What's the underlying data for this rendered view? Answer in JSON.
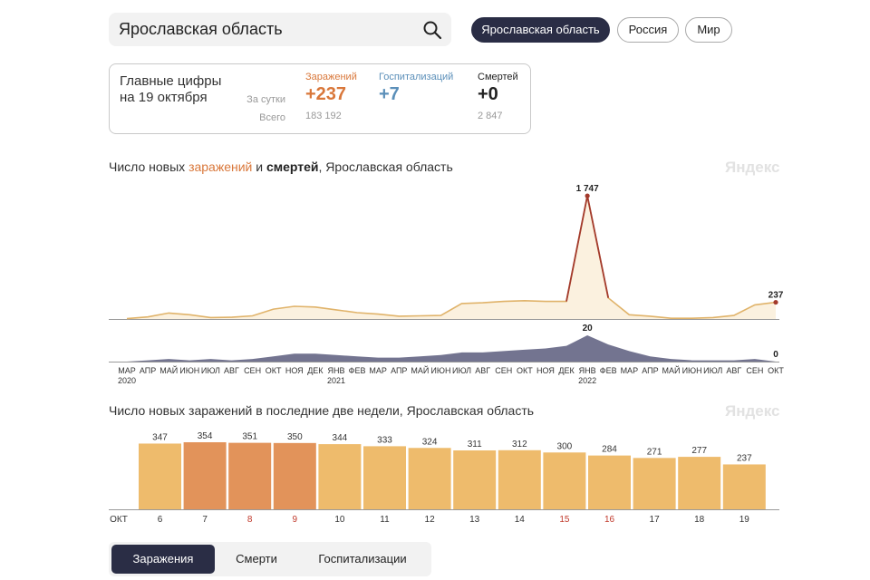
{
  "search": {
    "value": "Ярославская область"
  },
  "region_tabs": [
    {
      "label": "Ярославская область",
      "active": true
    },
    {
      "label": "Россия",
      "active": false
    },
    {
      "label": "Мир",
      "active": false
    }
  ],
  "stats": {
    "title_line1": "Главные цифры",
    "title_line2": "на 19 октября",
    "row_day": "За сутки",
    "row_total": "Всего",
    "infections": {
      "label": "Заражений",
      "day": "+237",
      "total": "183 192",
      "color": "#d9773a"
    },
    "hospitalizations": {
      "label": "Госпитализаций",
      "day": "+7",
      "total": "",
      "color": "#5b8fb9"
    },
    "deaths": {
      "label": "Смертей",
      "day": "+0",
      "total": "2 847",
      "color": "#222222"
    }
  },
  "chart1": {
    "title_part1": "Число новых ",
    "title_part2": "заражений",
    "title_part3": " и ",
    "title_part4": "смертей",
    "title_part5": ", Ярославская область",
    "watermark": "Яндекс"
  },
  "chart2": {
    "title": "Число новых заражений в последние две недели, Ярославская область",
    "watermark": "Яндекс"
  },
  "chart_data": [
    {
      "type": "area",
      "series": [
        {
          "name": "заражений",
          "color": "#e0b36a",
          "x": [
            "2020-03",
            "2020-04",
            "2020-05",
            "2020-06",
            "2020-07",
            "2020-08",
            "2020-09",
            "2020-10",
            "2020-11",
            "2020-12",
            "2021-01",
            "2021-02",
            "2021-03",
            "2021-04",
            "2021-05",
            "2021-06",
            "2021-07",
            "2021-08",
            "2021-09",
            "2021-10",
            "2021-11",
            "2021-12",
            "2022-01",
            "2022-02",
            "2022-03",
            "2022-04",
            "2022-05",
            "2022-06",
            "2022-07",
            "2022-08",
            "2022-09",
            "2022-10"
          ],
          "values": [
            5,
            30,
            85,
            60,
            20,
            25,
            45,
            140,
            180,
            170,
            130,
            90,
            70,
            40,
            45,
            50,
            220,
            230,
            250,
            260,
            250,
            250,
            1747,
            300,
            60,
            40,
            10,
            10,
            20,
            50,
            200,
            237
          ]
        },
        {
          "name": "смертей",
          "color": "#5a5c7c",
          "x": [
            "2020-03",
            "2020-04",
            "2020-05",
            "2020-06",
            "2020-07",
            "2020-08",
            "2020-09",
            "2020-10",
            "2020-11",
            "2020-12",
            "2021-01",
            "2021-02",
            "2021-03",
            "2021-04",
            "2021-05",
            "2021-06",
            "2021-07",
            "2021-08",
            "2021-09",
            "2021-10",
            "2021-11",
            "2021-12",
            "2022-01",
            "2022-02",
            "2022-03",
            "2022-04",
            "2022-05",
            "2022-06",
            "2022-07",
            "2022-08",
            "2022-09",
            "2022-10"
          ],
          "values": [
            0,
            1,
            2,
            1,
            2,
            1,
            2,
            4,
            6,
            6,
            5,
            4,
            3,
            3,
            4,
            5,
            7,
            7,
            8,
            9,
            10,
            12,
            20,
            13,
            8,
            4,
            2,
            1,
            1,
            1,
            2,
            0
          ]
        }
      ],
      "annotations": [
        {
          "label": "1 747",
          "series": "заражений",
          "x": "2022-01"
        },
        {
          "label": "237",
          "series": "заражений",
          "x": "2022-10"
        },
        {
          "label": "20",
          "series": "смертей",
          "x": "2022-01"
        },
        {
          "label": "0",
          "series": "смертей",
          "x": "2022-10"
        }
      ],
      "month_ticks": [
        "МАР",
        "АПР",
        "МАЙ",
        "ИЮН",
        "ИЮЛ",
        "АВГ",
        "СЕН",
        "ОКТ",
        "НОЯ",
        "ДЕК",
        "ЯНВ",
        "ФЕВ",
        "МАР",
        "АПР",
        "МАЙ",
        "ИЮН",
        "ИЮЛ",
        "АВГ",
        "СЕН",
        "ОКТ",
        "НОЯ",
        "ДЕК",
        "ЯНВ",
        "ФЕВ",
        "МАР",
        "АПР",
        "МАЙ",
        "ИЮН",
        "ИЮЛ",
        "АВГ",
        "СЕН",
        "ОКТ"
      ],
      "year_ticks": [
        {
          "label": "2020",
          "month_index": 0
        },
        {
          "label": "2021",
          "month_index": 10
        },
        {
          "label": "2022",
          "month_index": 22
        }
      ],
      "grid": false
    },
    {
      "type": "bar",
      "axis_label": "ОКТ",
      "categories": [
        "6",
        "7",
        "8",
        "9",
        "10",
        "11",
        "12",
        "13",
        "14",
        "15",
        "16",
        "17",
        "18",
        "19"
      ],
      "values": [
        347,
        354,
        351,
        350,
        344,
        333,
        324,
        311,
        312,
        300,
        284,
        271,
        277,
        237
      ],
      "highlighted": [
        false,
        true,
        true,
        true,
        false,
        false,
        false,
        false,
        false,
        false,
        false,
        false,
        false,
        false
      ],
      "weekend": [
        false,
        false,
        true,
        true,
        false,
        false,
        false,
        false,
        false,
        true,
        true,
        false,
        false,
        false
      ],
      "ylim": [
        0,
        370
      ],
      "colors": {
        "bar": "#eebb6c",
        "highlight": "#e2935a",
        "label": "#333333",
        "weekend_label": "#c0392b"
      },
      "grid": false
    }
  ]
}
